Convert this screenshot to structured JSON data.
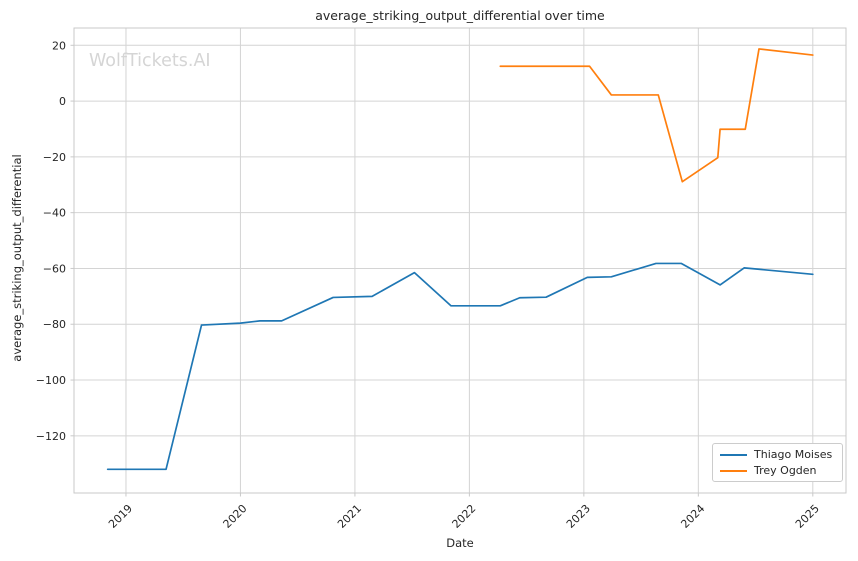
{
  "watermark": "WolfTickets.AI",
  "chart_data": {
    "type": "line",
    "title": "average_striking_output_differential over time",
    "xlabel": "Date",
    "ylabel": "average_striking_output_differential",
    "grid": true,
    "legend_position": "lower right",
    "xlim": [
      2018.546,
      2025.29
    ],
    "ylim": [
      -140.5,
      26.2
    ],
    "x_ticks": [
      {
        "value": 2019,
        "label": "2019"
      },
      {
        "value": 2020,
        "label": "2020"
      },
      {
        "value": 2021,
        "label": "2021"
      },
      {
        "value": 2022,
        "label": "2022"
      },
      {
        "value": 2023,
        "label": "2023"
      },
      {
        "value": 2024,
        "label": "2024"
      },
      {
        "value": 2025,
        "label": "2025"
      }
    ],
    "y_ticks": [
      {
        "value": 20,
        "label": "20"
      },
      {
        "value": 0,
        "label": "0"
      },
      {
        "value": -20,
        "label": "−20"
      },
      {
        "value": -40,
        "label": "−40"
      },
      {
        "value": -60,
        "label": "−60"
      },
      {
        "value": -80,
        "label": "−80"
      },
      {
        "value": -100,
        "label": "−100"
      },
      {
        "value": -120,
        "label": "−120"
      }
    ],
    "series": [
      {
        "name": "Thiago Moises",
        "color": "#1f77b4",
        "x": [
          2018.84,
          2019.35,
          2019.66,
          2020.0,
          2020.17,
          2020.36,
          2020.81,
          2021.15,
          2021.52,
          2021.84,
          2022.27,
          2022.44,
          2022.67,
          2023.03,
          2023.24,
          2023.63,
          2023.85,
          2024.19,
          2024.4,
          2025.0
        ],
        "y": [
          -132.0,
          -132.0,
          -80.3,
          -79.6,
          -78.8,
          -78.8,
          -70.4,
          -70.0,
          -61.5,
          -73.4,
          -73.4,
          -70.5,
          -70.3,
          -63.2,
          -63.0,
          -58.2,
          -58.2,
          -65.9,
          -59.8,
          -62.1
        ]
      },
      {
        "name": "Trey Ogden",
        "color": "#ff7f0e",
        "x": [
          2022.27,
          2023.05,
          2023.24,
          2023.65,
          2023.86,
          2024.17,
          2024.19,
          2024.41,
          2024.53,
          2025.0
        ],
        "y": [
          12.5,
          12.5,
          2.2,
          2.2,
          -28.9,
          -20.3,
          -10.1,
          -10.1,
          18.7,
          16.5
        ]
      }
    ],
    "colors": {
      "grid": "#d4d4d4",
      "spine": "#c9c9c9",
      "tick": "#c9c9c9",
      "text": "#262626"
    }
  }
}
